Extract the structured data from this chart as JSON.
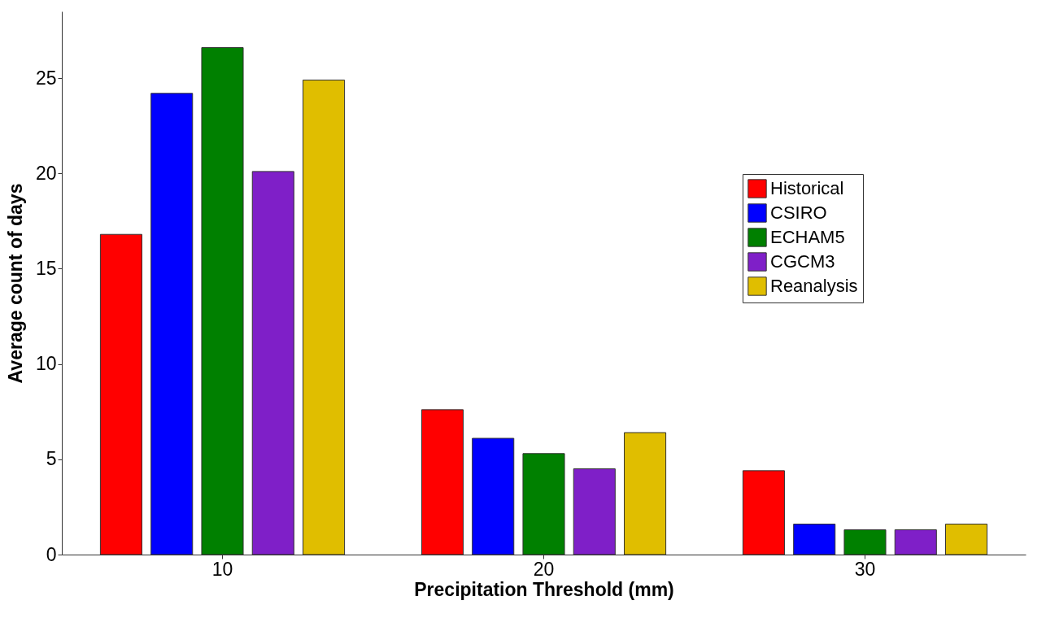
{
  "chart_data": {
    "type": "bar",
    "xlabel": "Precipitation Threshold (mm)",
    "ylabel": "Average count of days",
    "categories": [
      "10",
      "20",
      "30"
    ],
    "series": [
      {
        "name": "Historical",
        "color": "#ff0000",
        "values": [
          16.8,
          7.6,
          4.4
        ]
      },
      {
        "name": "CSIRO",
        "color": "#0000ff",
        "values": [
          24.2,
          6.1,
          1.6
        ]
      },
      {
        "name": "ECHAM5",
        "color": "#008000",
        "values": [
          26.6,
          5.3,
          1.3
        ]
      },
      {
        "name": "CGCM3",
        "color": "#7f1fc8",
        "values": [
          20.1,
          4.5,
          1.3
        ]
      },
      {
        "name": "Reanalysis",
        "color": "#e0be00",
        "values": [
          24.9,
          6.4,
          1.6
        ]
      }
    ],
    "ylim": [
      0,
      28.5
    ],
    "yticks": [
      0,
      5,
      10,
      15,
      20,
      25
    ],
    "grid": false,
    "legend": "top right"
  }
}
